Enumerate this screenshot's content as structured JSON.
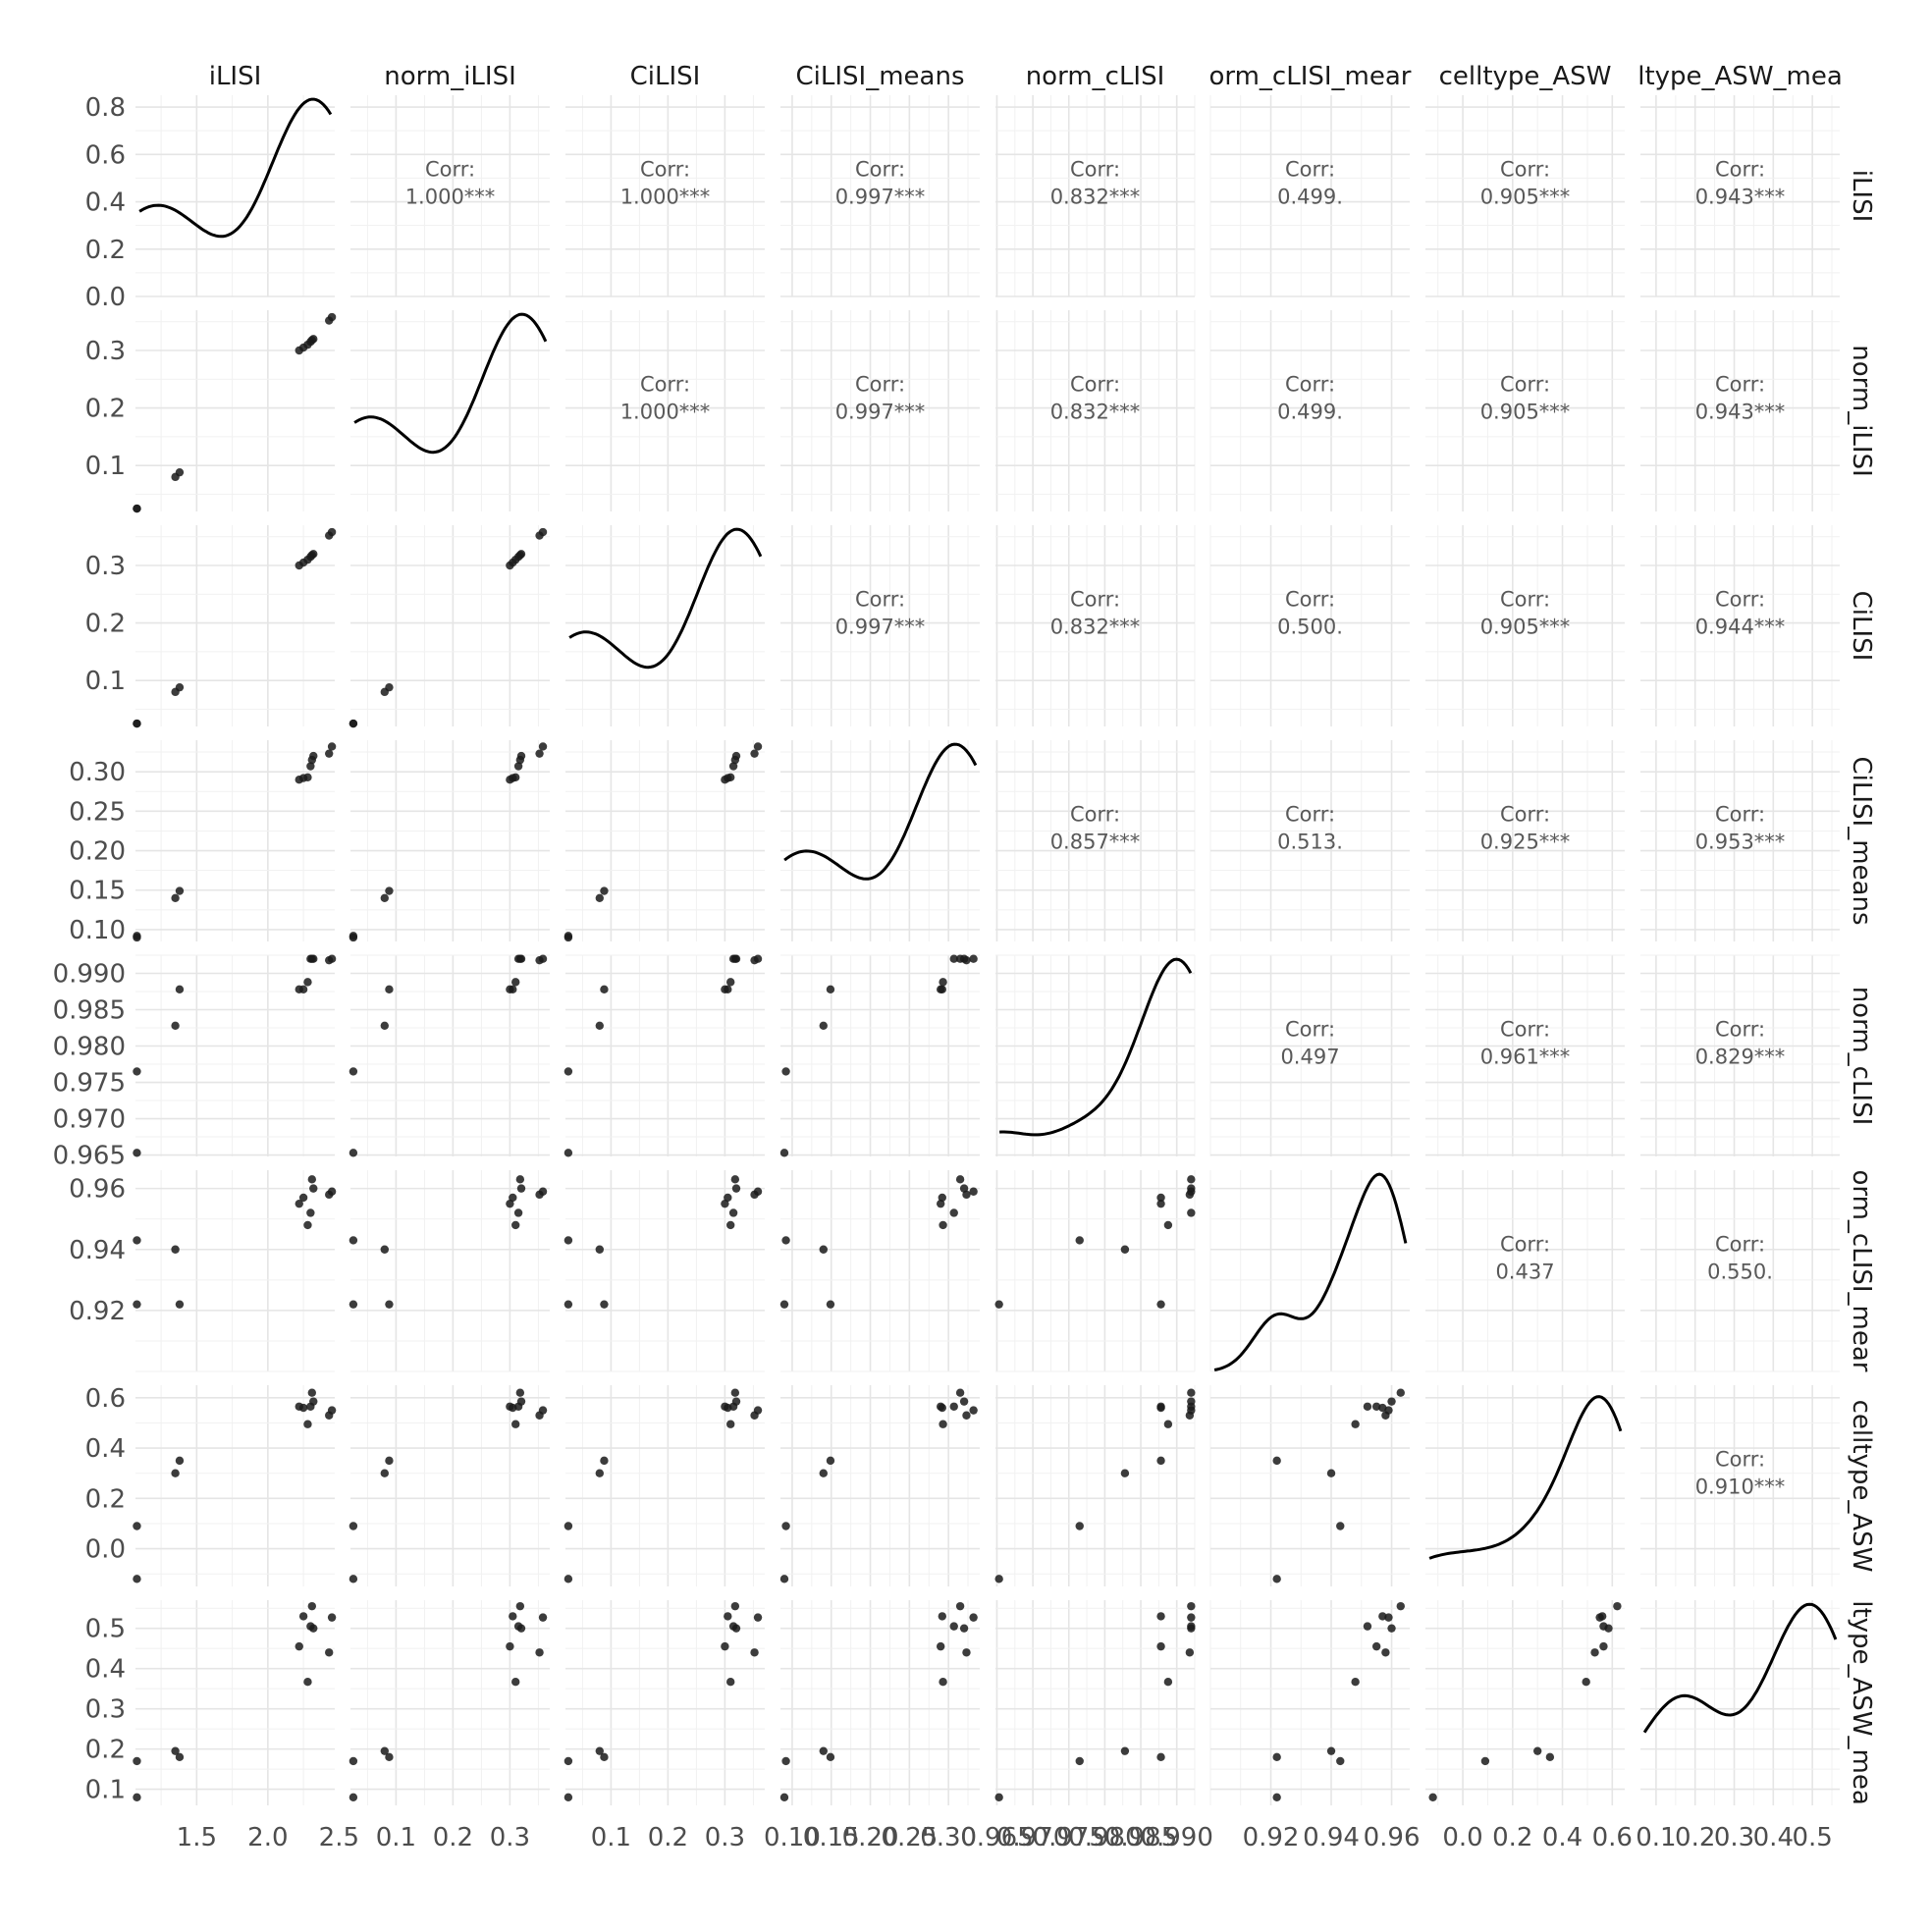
{
  "chart_data": {
    "type": "scatter",
    "variables": [
      "iLISI",
      "norm_iLISI",
      "CiLISI",
      "CiLISI_means",
      "norm_cLISI",
      "norm_cLISI_means",
      "celltype_ASW",
      "celltype_ASW_means"
    ],
    "strip_labels": [
      "iLISI",
      "norm_iLISI",
      "CiLISI",
      "CiLISI_means",
      "norm_cLISI",
      "orm_cLISI_mear",
      "celltype_ASW",
      "ltype_ASW_mea"
    ],
    "row_strip_labels": [
      "iLISI",
      "norm_iLISI",
      "CiLISI",
      "CiLISI_means",
      "norm_cLISI",
      "orm_cLISI_mear",
      "celltype_ASW",
      "ltype_ASW_mea"
    ],
    "corr_label": "Corr:",
    "correlations": [
      {
        "row": 1,
        "col": 0,
        "text": "1.000***"
      },
      {
        "row": 2,
        "col": 0,
        "text": "1.000***"
      },
      {
        "row": 2,
        "col": 1,
        "text": "1.000***"
      },
      {
        "row": 3,
        "col": 0,
        "text": "0.997***"
      },
      {
        "row": 3,
        "col": 1,
        "text": "0.997***"
      },
      {
        "row": 3,
        "col": 2,
        "text": "0.997***"
      },
      {
        "row": 4,
        "col": 0,
        "text": "0.832***"
      },
      {
        "row": 4,
        "col": 1,
        "text": "0.832***"
      },
      {
        "row": 4,
        "col": 2,
        "text": "0.832***"
      },
      {
        "row": 4,
        "col": 3,
        "text": "0.857***"
      },
      {
        "row": 5,
        "col": 0,
        "text": "0.499."
      },
      {
        "row": 5,
        "col": 1,
        "text": "0.499."
      },
      {
        "row": 5,
        "col": 2,
        "text": "0.500."
      },
      {
        "row": 5,
        "col": 3,
        "text": "0.513."
      },
      {
        "row": 5,
        "col": 4,
        "text": "0.497"
      },
      {
        "row": 6,
        "col": 0,
        "text": "0.905***"
      },
      {
        "row": 6,
        "col": 1,
        "text": "0.905***"
      },
      {
        "row": 6,
        "col": 2,
        "text": "0.905***"
      },
      {
        "row": 6,
        "col": 3,
        "text": "0.925***"
      },
      {
        "row": 6,
        "col": 4,
        "text": "0.961***"
      },
      {
        "row": 6,
        "col": 5,
        "text": "0.437"
      },
      {
        "row": 7,
        "col": 0,
        "text": "0.943***"
      },
      {
        "row": 7,
        "col": 1,
        "text": "0.943***"
      },
      {
        "row": 7,
        "col": 2,
        "text": "0.944***"
      },
      {
        "row": 7,
        "col": 3,
        "text": "0.953***"
      },
      {
        "row": 7,
        "col": 4,
        "text": "0.829***"
      },
      {
        "row": 7,
        "col": 5,
        "text": "0.550."
      },
      {
        "row": 7,
        "col": 6,
        "text": "0.910***"
      }
    ],
    "x_ranges": [
      [
        1.07,
        2.47
      ],
      [
        0.02,
        0.37
      ],
      [
        0.02,
        0.37
      ],
      [
        0.085,
        0.34
      ],
      [
        0.9648,
        0.9925
      ],
      [
        0.9,
        0.966
      ],
      [
        -0.15,
        0.65
      ],
      [
        0.06,
        0.57
      ]
    ],
    "y_ranges": [
      [
        0.0,
        0.85
      ],
      [
        0.02,
        0.37
      ],
      [
        0.02,
        0.37
      ],
      [
        0.085,
        0.34
      ],
      [
        0.9648,
        0.9925
      ],
      [
        0.9,
        0.966
      ],
      [
        -0.15,
        0.65
      ],
      [
        0.06,
        0.57
      ]
    ],
    "x_ticks": [
      {
        "values": [
          1.5,
          2.0,
          2.5
        ],
        "labels": [
          "1.5",
          "2.0",
          "2.5"
        ]
      },
      {
        "values": [
          0.1,
          0.2,
          0.3
        ],
        "labels": [
          "0.1",
          "0.2",
          "0.3"
        ]
      },
      {
        "values": [
          0.1,
          0.2,
          0.3
        ],
        "labels": [
          "0.1",
          "0.2",
          "0.3"
        ]
      },
      {
        "values": [
          0.1,
          0.15,
          0.2,
          0.25,
          0.3
        ],
        "labels": [
          "0.10",
          "0.15",
          "0.20",
          "0.25",
          "0.30"
        ]
      },
      {
        "values": [
          0.965,
          0.97,
          0.975,
          0.98,
          0.985,
          0.99
        ],
        "labels": [
          "0.965",
          "0.970",
          "0.975",
          "0.980",
          "0.985",
          "0.990"
        ]
      },
      {
        "values": [
          0.92,
          0.94,
          0.96
        ],
        "labels": [
          "0.92",
          "0.94",
          "0.96"
        ]
      },
      {
        "values": [
          0.0,
          0.2,
          0.4,
          0.6
        ],
        "labels": [
          "0.0",
          "0.2",
          "0.4",
          "0.6"
        ]
      },
      {
        "values": [
          0.1,
          0.2,
          0.3,
          0.4,
          0.5
        ],
        "labels": [
          "0.1",
          "0.2",
          "0.3",
          "0.4",
          "0.5"
        ]
      }
    ],
    "y_ticks": [
      {
        "values": [
          0.0,
          0.2,
          0.4,
          0.6,
          0.8
        ],
        "labels": [
          "0.0",
          "0.2",
          "0.4",
          "0.6",
          "0.8"
        ]
      },
      {
        "values": [
          0.1,
          0.2,
          0.3
        ],
        "labels": [
          "0.1",
          "0.2",
          "0.3"
        ]
      },
      {
        "values": [
          0.1,
          0.2,
          0.3
        ],
        "labels": [
          "0.1",
          "0.2",
          "0.3"
        ]
      },
      {
        "values": [
          0.1,
          0.15,
          0.2,
          0.25,
          0.3
        ],
        "labels": [
          "0.10",
          "0.15",
          "0.20",
          "0.25",
          "0.30"
        ]
      },
      {
        "values": [
          0.965,
          0.97,
          0.975,
          0.98,
          0.985,
          0.99
        ],
        "labels": [
          "0.965",
          "0.970",
          "0.975",
          "0.980",
          "0.985",
          "0.990"
        ]
      },
      {
        "values": [
          0.92,
          0.94,
          0.96
        ],
        "labels": [
          "0.92",
          "0.94",
          "0.96"
        ]
      },
      {
        "values": [
          0.0,
          0.2,
          0.4,
          0.6
        ],
        "labels": [
          "0.0",
          "0.2",
          "0.4",
          "0.6"
        ]
      },
      {
        "values": [
          0.1,
          0.2,
          0.3,
          0.4,
          0.5
        ],
        "labels": [
          "0.1",
          "0.2",
          "0.3",
          "0.4",
          "0.5"
        ]
      }
    ],
    "points": [
      [
        1.08,
        0.025,
        0.025,
        0.09,
        0.9653,
        0.922,
        -0.12,
        0.08
      ],
      [
        1.08,
        0.025,
        0.025,
        0.092,
        0.9765,
        0.943,
        0.09,
        0.17
      ],
      [
        1.35,
        0.08,
        0.08,
        0.14,
        0.9828,
        0.94,
        0.3,
        0.195
      ],
      [
        1.38,
        0.088,
        0.088,
        0.149,
        0.9878,
        0.922,
        0.35,
        0.18
      ],
      [
        2.22,
        0.3,
        0.3,
        0.29,
        0.9878,
        0.955,
        0.565,
        0.455
      ],
      [
        2.25,
        0.305,
        0.305,
        0.292,
        0.9878,
        0.957,
        0.56,
        0.53
      ],
      [
        2.28,
        0.31,
        0.31,
        0.293,
        0.9888,
        0.948,
        0.495,
        0.367
      ],
      [
        2.3,
        0.315,
        0.315,
        0.307,
        0.992,
        0.952,
        0.565,
        0.505
      ],
      [
        2.31,
        0.318,
        0.318,
        0.315,
        0.992,
        0.963,
        0.62,
        0.555
      ],
      [
        2.32,
        0.32,
        0.32,
        0.32,
        0.992,
        0.96,
        0.585,
        0.5
      ],
      [
        2.43,
        0.352,
        0.352,
        0.323,
        0.9918,
        0.958,
        0.53,
        0.44
      ],
      [
        2.45,
        0.358,
        0.358,
        0.332,
        0.992,
        0.959,
        0.55,
        0.527
      ]
    ],
    "density_peak": [
      0.85,
      0.37,
      0.37,
      0.34,
      0.9925,
      0.966,
      0.62,
      0.57
    ]
  }
}
